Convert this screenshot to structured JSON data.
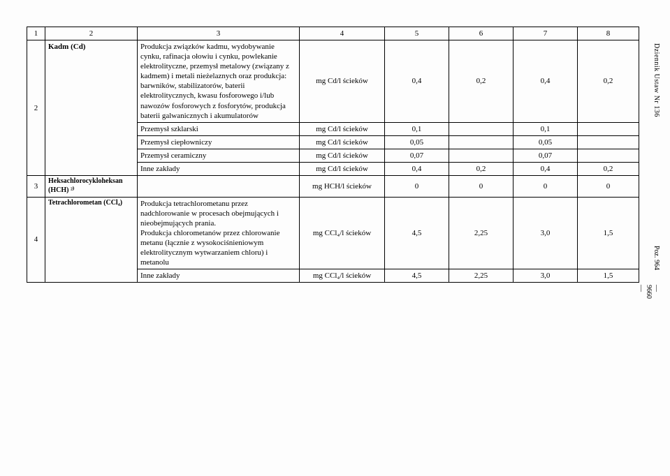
{
  "side": {
    "journal": "Dziennik Ustaw Nr 136",
    "pageno": "— 9660 —",
    "poz": "Poz. 964"
  },
  "header": {
    "c1": "1",
    "c2": "2",
    "c3": "3",
    "c4": "4",
    "c5": "5",
    "c6": "6",
    "c7": "7",
    "c8": "8"
  },
  "rows": [
    {
      "c1": "2",
      "c2": "Kadm (Cd)",
      "c3": "Produkcja związków kadmu, wydobywanie cynku, rafinacja ołowiu i cynku, powlekanie elektrolityczne, przemysł metalowy (związany z kadmem) i metali nieżelaznych oraz produkcja: barwników, stabilizatorów, baterii elektrolitycznych, kwasu fosforowego i/lub nawozów fosforowych z fosforytów, produkcja baterii galwanicznych i akumulatorów",
      "c4": "mg Cd/l ścieków",
      "c5": "0,4",
      "c6": "0,2",
      "c7": "0,4",
      "c8": "0,2"
    },
    {
      "c3": "Przemysł szklarski",
      "c4": "mg Cd/l ścieków",
      "c5": "0,1",
      "c6": "",
      "c7": "0,1",
      "c8": ""
    },
    {
      "c3": "Przemysł ciepłowniczy",
      "c4": "mg Cd/l ścieków",
      "c5": "0,05",
      "c6": "",
      "c7": "0,05",
      "c8": ""
    },
    {
      "c3": "Przemysł ceramiczny",
      "c4": "mg Cd/l ścieków",
      "c5": "0,07",
      "c6": "",
      "c7": "0,07",
      "c8": ""
    },
    {
      "c3": "Inne zakłady",
      "c4": "mg Cd/l ścieków",
      "c5": "0,4",
      "c6": "0,2",
      "c7": "0,4",
      "c8": "0,2"
    },
    {
      "c1": "3",
      "c2": "Heksachlorocykloheksan (HCH) ²⁾",
      "c3": "",
      "c4": "mg HCH/l ścieków",
      "c5": "0",
      "c6": "0",
      "c7": "0",
      "c8": "0"
    },
    {
      "c1": "4",
      "c2": "Tetrachlorometan (CCl₄)",
      "c3": "Produkcja tetrachlorometanu przez nadchlorowanie w procesach obejmujących i nieobejmujących prania.\nProdukcja chlorometanów przez chlorowanie metanu (łącznie z wysokociśnieniowym elektrolitycznym wytwarzaniem chloru) i metanolu",
      "c4": "mg CCl₄/l ścieków",
      "c5": "4,5",
      "c6": "2,25",
      "c7": "3,0",
      "c8": "1,5"
    },
    {
      "c3": "Inne zakłady",
      "c4": "mg CCl₄/l ścieków",
      "c5": "4,5",
      "c6": "2,25",
      "c7": "3,0",
      "c8": "1,5"
    }
  ]
}
